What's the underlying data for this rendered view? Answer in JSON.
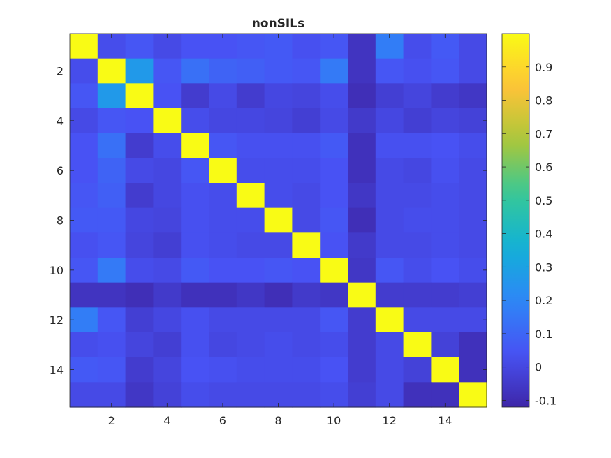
{
  "chart_data": {
    "type": "heatmap",
    "title": "nonSILs",
    "xlabel": "",
    "ylabel": "",
    "x_ticks": [
      2,
      4,
      6,
      8,
      10,
      12,
      14
    ],
    "y_ticks": [
      2,
      4,
      6,
      8,
      10,
      12,
      14
    ],
    "x_range": [
      0.5,
      15.5
    ],
    "y_range": [
      0.5,
      15.5
    ],
    "colorbar": {
      "colormap": "parula",
      "range": [
        -0.12,
        1.0
      ],
      "ticks": [
        -0.1,
        0,
        0.1,
        0.2,
        0.3,
        0.4,
        0.5,
        0.6,
        0.7,
        0.8,
        0.9
      ],
      "tick_labels": [
        "-0.1",
        "0",
        "0.1",
        "0.2",
        "0.3",
        "0.4",
        "0.5",
        "0.6",
        "0.7",
        "0.8",
        "0.9"
      ]
    },
    "matrix": [
      [
        1.0,
        0.02,
        0.05,
        0.01,
        0.04,
        0.04,
        0.05,
        0.06,
        0.03,
        0.05,
        -0.07,
        0.17,
        0.02,
        0.06,
        0.01
      ],
      [
        0.02,
        1.0,
        0.27,
        0.05,
        0.13,
        0.09,
        0.08,
        0.06,
        0.05,
        0.16,
        -0.07,
        0.05,
        0.03,
        0.05,
        0.01
      ],
      [
        0.05,
        0.27,
        1.0,
        0.04,
        -0.04,
        0.01,
        -0.04,
        0.0,
        -0.01,
        0.02,
        -0.09,
        -0.03,
        -0.01,
        -0.04,
        -0.06
      ],
      [
        0.01,
        0.05,
        0.04,
        1.0,
        0.02,
        0.0,
        0.0,
        -0.01,
        -0.03,
        0.01,
        -0.05,
        0.0,
        -0.03,
        -0.01,
        -0.02
      ],
      [
        0.04,
        0.13,
        -0.04,
        0.02,
        1.0,
        0.05,
        0.03,
        0.03,
        0.03,
        0.06,
        -0.08,
        0.03,
        0.03,
        0.04,
        0.02
      ],
      [
        0.04,
        0.09,
        0.01,
        0.0,
        0.05,
        1.0,
        0.02,
        0.02,
        0.02,
        0.04,
        -0.08,
        0.01,
        0.0,
        0.03,
        0.01
      ],
      [
        0.05,
        0.08,
        -0.04,
        0.0,
        0.03,
        0.02,
        1.0,
        0.02,
        0.01,
        0.04,
        -0.06,
        0.01,
        0.01,
        0.02,
        0.01
      ],
      [
        0.06,
        0.06,
        0.0,
        -0.01,
        0.03,
        0.02,
        0.02,
        1.0,
        0.01,
        0.05,
        -0.09,
        0.01,
        0.02,
        0.02,
        0.01
      ],
      [
        0.03,
        0.05,
        -0.01,
        -0.03,
        0.03,
        0.02,
        0.01,
        0.01,
        1.0,
        0.04,
        -0.05,
        0.01,
        0.01,
        0.02,
        0.01
      ],
      [
        0.05,
        0.16,
        0.02,
        0.01,
        0.06,
        0.04,
        0.04,
        0.05,
        0.04,
        1.0,
        -0.06,
        0.05,
        0.02,
        0.04,
        0.02
      ],
      [
        -0.07,
        -0.07,
        -0.09,
        -0.05,
        -0.08,
        -0.08,
        -0.06,
        -0.09,
        -0.05,
        -0.06,
        1.0,
        -0.04,
        -0.04,
        -0.04,
        -0.03
      ],
      [
        0.17,
        0.05,
        -0.03,
        0.0,
        0.03,
        0.01,
        0.01,
        0.01,
        0.01,
        0.05,
        -0.04,
        1.0,
        0.01,
        0.01,
        0.01
      ],
      [
        0.02,
        0.03,
        -0.01,
        -0.03,
        0.03,
        0.0,
        0.01,
        0.02,
        0.01,
        0.02,
        -0.04,
        0.01,
        1.0,
        -0.02,
        -0.08
      ],
      [
        0.06,
        0.05,
        -0.04,
        -0.01,
        0.04,
        0.03,
        0.02,
        0.02,
        0.02,
        0.04,
        -0.04,
        0.01,
        -0.02,
        1.0,
        -0.08
      ],
      [
        0.01,
        0.01,
        -0.06,
        -0.02,
        0.02,
        0.01,
        0.01,
        0.01,
        0.01,
        0.02,
        -0.03,
        0.01,
        -0.08,
        -0.08,
        1.0
      ]
    ]
  }
}
